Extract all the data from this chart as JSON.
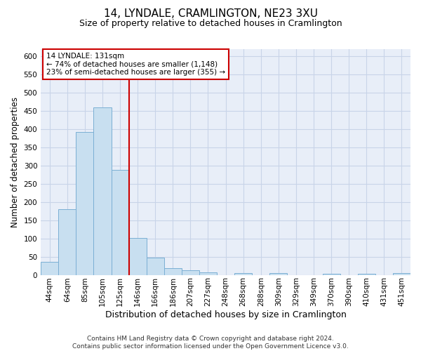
{
  "title": "14, LYNDALE, CRAMLINGTON, NE23 3XU",
  "subtitle": "Size of property relative to detached houses in Cramlington",
  "xlabel": "Distribution of detached houses by size in Cramlington",
  "ylabel": "Number of detached properties",
  "footer_line1": "Contains HM Land Registry data © Crown copyright and database right 2024.",
  "footer_line2": "Contains public sector information licensed under the Open Government Licence v3.0.",
  "categories": [
    "44sqm",
    "64sqm",
    "85sqm",
    "105sqm",
    "125sqm",
    "146sqm",
    "166sqm",
    "186sqm",
    "207sqm",
    "227sqm",
    "248sqm",
    "268sqm",
    "288sqm",
    "309sqm",
    "329sqm",
    "349sqm",
    "370sqm",
    "390sqm",
    "410sqm",
    "431sqm",
    "451sqm"
  ],
  "values": [
    35,
    180,
    392,
    460,
    288,
    102,
    48,
    18,
    12,
    7,
    0,
    5,
    0,
    5,
    0,
    0,
    3,
    0,
    3,
    0,
    5
  ],
  "bar_color": "#c8dff0",
  "bar_edge_color": "#7bafd4",
  "property_line_x": 4.5,
  "property_label": "14 LYNDALE: 131sqm",
  "annotation_line1": "← 74% of detached houses are smaller (1,148)",
  "annotation_line2": "23% of semi-detached houses are larger (355) →",
  "annotation_box_color": "#ffffff",
  "annotation_box_edge": "#cc0000",
  "vline_color": "#cc0000",
  "ylim": [
    0,
    620
  ],
  "yticks": [
    0,
    50,
    100,
    150,
    200,
    250,
    300,
    350,
    400,
    450,
    500,
    550,
    600
  ],
  "grid_color": "#c8d4e8",
  "background_color": "#e8eef8",
  "title_fontsize": 11,
  "subtitle_fontsize": 9,
  "ylabel_fontsize": 8.5,
  "xlabel_fontsize": 9,
  "footer_fontsize": 6.5,
  "annotation_fontsize": 7.5,
  "tick_fontsize": 7.5
}
